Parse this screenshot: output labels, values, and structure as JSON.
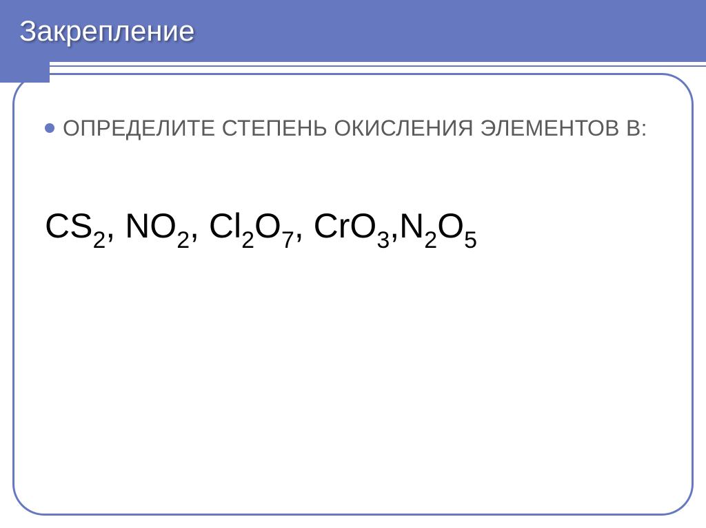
{
  "slide": {
    "title": "Закрепление",
    "bullet_text": "ОПРЕДЕЛИТЕ СТЕПЕНЬ ОКИСЛЕНИЯ ЭЛЕМЕНТОВ В:",
    "formulas": {
      "f1_base": "CS",
      "f1_sub": "2",
      "sep1": ", ",
      "f2_base": "NO",
      "f2_sub": "2",
      "sep2": ", ",
      "f3_basea": "Cl",
      "f3_suba": "2",
      "f3_baseb": "O",
      "f3_subb": "7",
      "sep3": ", ",
      "f4_base": "CrO",
      "f4_sub": "3",
      "sep4": ",",
      "f5_basea": "N",
      "f5_suba": "2",
      "f5_baseb": "O",
      "f5_subb": "5"
    }
  },
  "style": {
    "accent_color": "#6678c0",
    "title_color": "#ffffff",
    "body_text_color": "#5a5a5a",
    "formula_color": "#000000",
    "background": "#ffffff",
    "title_fontsize": 42,
    "bullet_fontsize": 32,
    "formula_fontsize": 50,
    "sub_fontsize": 34,
    "border_radius": 46,
    "border_width": 3
  }
}
